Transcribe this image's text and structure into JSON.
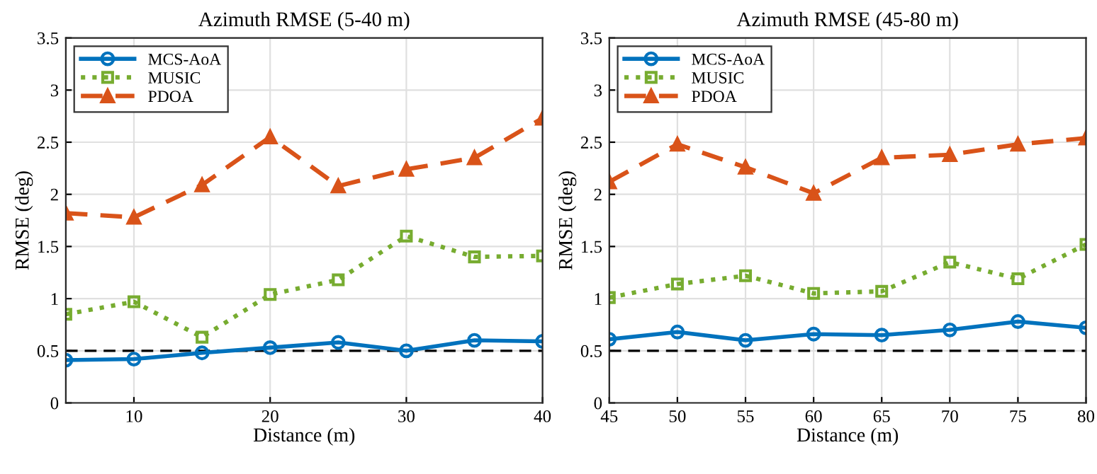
{
  "chart_data": [
    {
      "type": "line",
      "title": "Azimuth RMSE (5-40 m)",
      "xlabel": "Distance (m)",
      "ylabel": "RMSE (deg)",
      "x": [
        5,
        10,
        15,
        20,
        25,
        30,
        35,
        40
      ],
      "xlim": [
        5,
        40
      ],
      "xticks": [
        10,
        20,
        30,
        40
      ],
      "ylim": [
        0,
        3.5
      ],
      "yticks": [
        0,
        0.5,
        1,
        1.5,
        2,
        2.5,
        3,
        3.5
      ],
      "grid": true,
      "legend": "top left",
      "series": [
        {
          "name": "MCS-AoA",
          "color": "#0072bd",
          "marker": "circle",
          "line_style": "solid",
          "values": [
            0.41,
            0.42,
            0.48,
            0.53,
            0.58,
            0.5,
            0.6,
            0.59
          ]
        },
        {
          "name": "MUSIC",
          "color": "#77ac30",
          "marker": "square",
          "line_style": "dotted",
          "values": [
            0.85,
            0.97,
            0.63,
            1.04,
            1.18,
            1.6,
            1.4,
            1.41
          ]
        },
        {
          "name": "PDOA",
          "color": "#d95319",
          "marker": "triangle",
          "line_style": "dashed",
          "values": [
            1.82,
            1.78,
            2.09,
            2.55,
            2.08,
            2.24,
            2.35,
            2.73
          ]
        }
      ],
      "ref_lines": [
        {
          "axis": "y",
          "value": 0.5,
          "label": null,
          "color": "#000000",
          "line_style": "dashed"
        }
      ]
    },
    {
      "type": "line",
      "title": "Azimuth RMSE (45-80 m)",
      "xlabel": "Distance (m)",
      "ylabel": "RMSE (deg)",
      "x": [
        45,
        50,
        55,
        60,
        65,
        70,
        75,
        80
      ],
      "xlim": [
        45,
        80
      ],
      "xticks": [
        45,
        50,
        55,
        60,
        65,
        70,
        75,
        80
      ],
      "ylim": [
        0,
        3.5
      ],
      "yticks": [
        0,
        0.5,
        1,
        1.5,
        2,
        2.5,
        3,
        3.5
      ],
      "grid": true,
      "legend": "top left",
      "series": [
        {
          "name": "MCS-AoA",
          "color": "#0072bd",
          "marker": "circle",
          "line_style": "solid",
          "values": [
            0.61,
            0.68,
            0.6,
            0.66,
            0.65,
            0.7,
            0.78,
            0.72
          ]
        },
        {
          "name": "MUSIC",
          "color": "#77ac30",
          "marker": "square",
          "line_style": "dotted",
          "values": [
            1.01,
            1.14,
            1.22,
            1.05,
            1.07,
            1.35,
            1.19,
            1.52
          ]
        },
        {
          "name": "PDOA",
          "color": "#d95319",
          "marker": "triangle",
          "line_style": "dashed",
          "values": [
            2.12,
            2.48,
            2.26,
            2.01,
            2.35,
            2.38,
            2.48,
            2.54
          ]
        }
      ],
      "ref_lines": [
        {
          "axis": "y",
          "value": 0.5,
          "label": null,
          "color": "#000000",
          "line_style": "dashed"
        }
      ]
    }
  ]
}
